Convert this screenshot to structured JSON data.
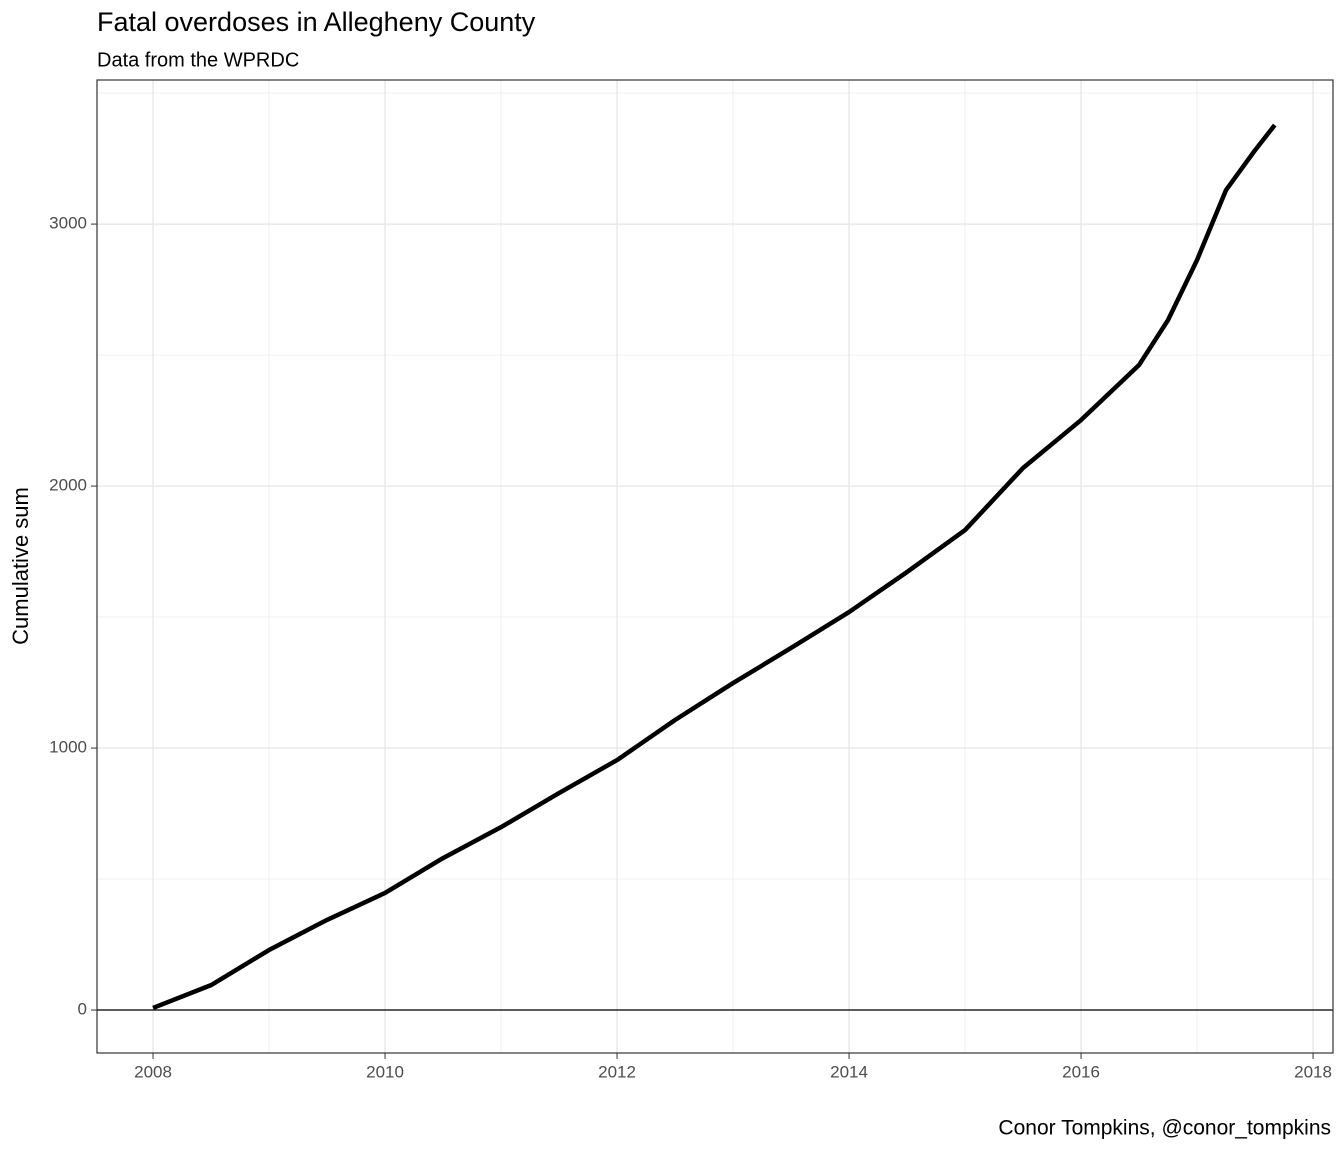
{
  "chart_data": {
    "type": "line",
    "title": "Fatal overdoses in Allegheny County",
    "subtitle": "Data from the WPRDC",
    "y_label": "Cumulative sum",
    "caption": "Conor Tompkins, @conor_tompkins",
    "x": [
      2008.0,
      2008.5,
      2009.0,
      2009.5,
      2010.0,
      2010.5,
      2011.0,
      2011.5,
      2012.0,
      2012.5,
      2013.0,
      2013.5,
      2014.0,
      2014.5,
      2015.0,
      2015.5,
      2016.0,
      2016.5,
      2016.75,
      2017.0,
      2017.25,
      2017.5,
      2017.67
    ],
    "series": [
      {
        "name": "Cumulative sum",
        "color": "#000000",
        "values": [
          8,
          95,
          229,
          344,
          447,
          580,
          698,
          828,
          954,
          1107,
          1248,
          1382,
          1519,
          1672,
          1832,
          2069,
          2252,
          2462,
          2634,
          2863,
          3130,
          3282,
          3378
        ]
      }
    ],
    "xlim": [
      2007.517,
      2018.172
    ],
    "xticks": [
      2008,
      2010,
      2012,
      2014,
      2016,
      2018
    ],
    "xticks_minor": [
      2009,
      2011,
      2013,
      2015,
      2017
    ],
    "ylim": [
      -164,
      3550
    ],
    "yticks": [
      0,
      1000,
      2000,
      3000
    ],
    "yticks_minor": [
      500,
      1500,
      2500,
      3500
    ],
    "hline": 0,
    "grid": true
  }
}
